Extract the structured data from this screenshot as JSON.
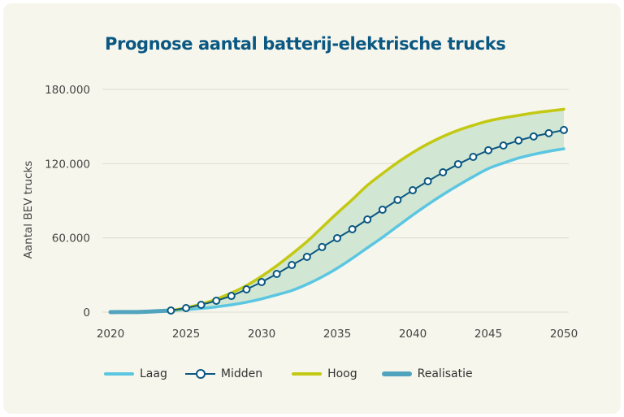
{
  "chart_data": {
    "type": "line",
    "title": "Prognose aantal batterij-elektrische trucks",
    "xlabel": "",
    "ylabel": "Aantal BEV trucks",
    "xlim": [
      2020,
      2050
    ],
    "ylim": [
      0,
      180000
    ],
    "x_ticks": [
      2020,
      2025,
      2030,
      2035,
      2040,
      2045,
      2050
    ],
    "x_tick_labels": [
      "2020",
      "2025",
      "2030",
      "2035",
      "2040",
      "2045",
      "2050"
    ],
    "y_ticks": [
      0,
      60000,
      120000,
      180000
    ],
    "y_tick_labels": [
      "0",
      "60.000",
      "120.000",
      "180.000"
    ],
    "grid": "horizontal",
    "legend_position": "bottom",
    "band": {
      "between": [
        "Laag",
        "Hoog"
      ],
      "color": "#d2e7d3"
    },
    "series": [
      {
        "name": "Realisatie",
        "color": "#52a3bd",
        "style": "thick-line",
        "x": [
          2020,
          2021,
          2022,
          2023,
          2024
        ],
        "values": [
          0,
          100,
          200,
          700,
          1300
        ]
      },
      {
        "name": "Laag",
        "color": "#5bc6e2",
        "style": "line",
        "x": [
          2024,
          2025,
          2026,
          2027,
          2028,
          2029,
          2030,
          2031,
          2032,
          2033,
          2034,
          2035,
          2036,
          2037,
          2038,
          2039,
          2040,
          2041,
          2042,
          2043,
          2044,
          2045,
          2046,
          2047,
          2048,
          2049,
          2050
        ],
        "values": [
          1300,
          2000,
          3000,
          4300,
          5900,
          8000,
          10700,
          14000,
          17500,
          22500,
          28500,
          35500,
          43500,
          52000,
          60500,
          69500,
          78500,
          87000,
          95000,
          102500,
          109500,
          116000,
          120500,
          124500,
          127500,
          130000,
          132000
        ]
      },
      {
        "name": "Midden",
        "color": "#0a5782",
        "style": "line-markers",
        "x": [
          2024,
          2025,
          2026,
          2027,
          2028,
          2029,
          2030,
          2031,
          2032,
          2033,
          2034,
          2035,
          2036,
          2037,
          2038,
          2039,
          2040,
          2041,
          2042,
          2043,
          2044,
          2045,
          2046,
          2047,
          2048,
          2049,
          2050
        ],
        "values": [
          1300,
          3300,
          5900,
          9200,
          13100,
          18400,
          24300,
          30900,
          38100,
          44700,
          52600,
          59800,
          67000,
          74900,
          82800,
          90700,
          98500,
          105800,
          113000,
          119600,
          125500,
          130800,
          134700,
          138700,
          142000,
          144600,
          147200
        ]
      },
      {
        "name": "Hoog",
        "color": "#c3c912",
        "style": "line",
        "x": [
          2024,
          2025,
          2026,
          2027,
          2028,
          2029,
          2030,
          2031,
          2032,
          2033,
          2034,
          2035,
          2036,
          2037,
          2038,
          2039,
          2040,
          2041,
          2042,
          2043,
          2044,
          2045,
          2046,
          2047,
          2048,
          2049,
          2050
        ],
        "values": [
          1300,
          3500,
          6500,
          10500,
          15500,
          21500,
          29000,
          37500,
          47000,
          57000,
          68500,
          80000,
          91000,
          102500,
          112000,
          121000,
          129000,
          136000,
          142000,
          147000,
          151000,
          154500,
          157000,
          159000,
          161000,
          162500,
          164000
        ]
      }
    ]
  },
  "legend": {
    "items": [
      {
        "label": "Laag",
        "color": "#5bc6e2"
      },
      {
        "label": "Midden",
        "color": "#0a5782"
      },
      {
        "label": "Hoog",
        "color": "#c3c912"
      },
      {
        "label": "Realisatie",
        "color": "#52a3bd"
      }
    ]
  }
}
